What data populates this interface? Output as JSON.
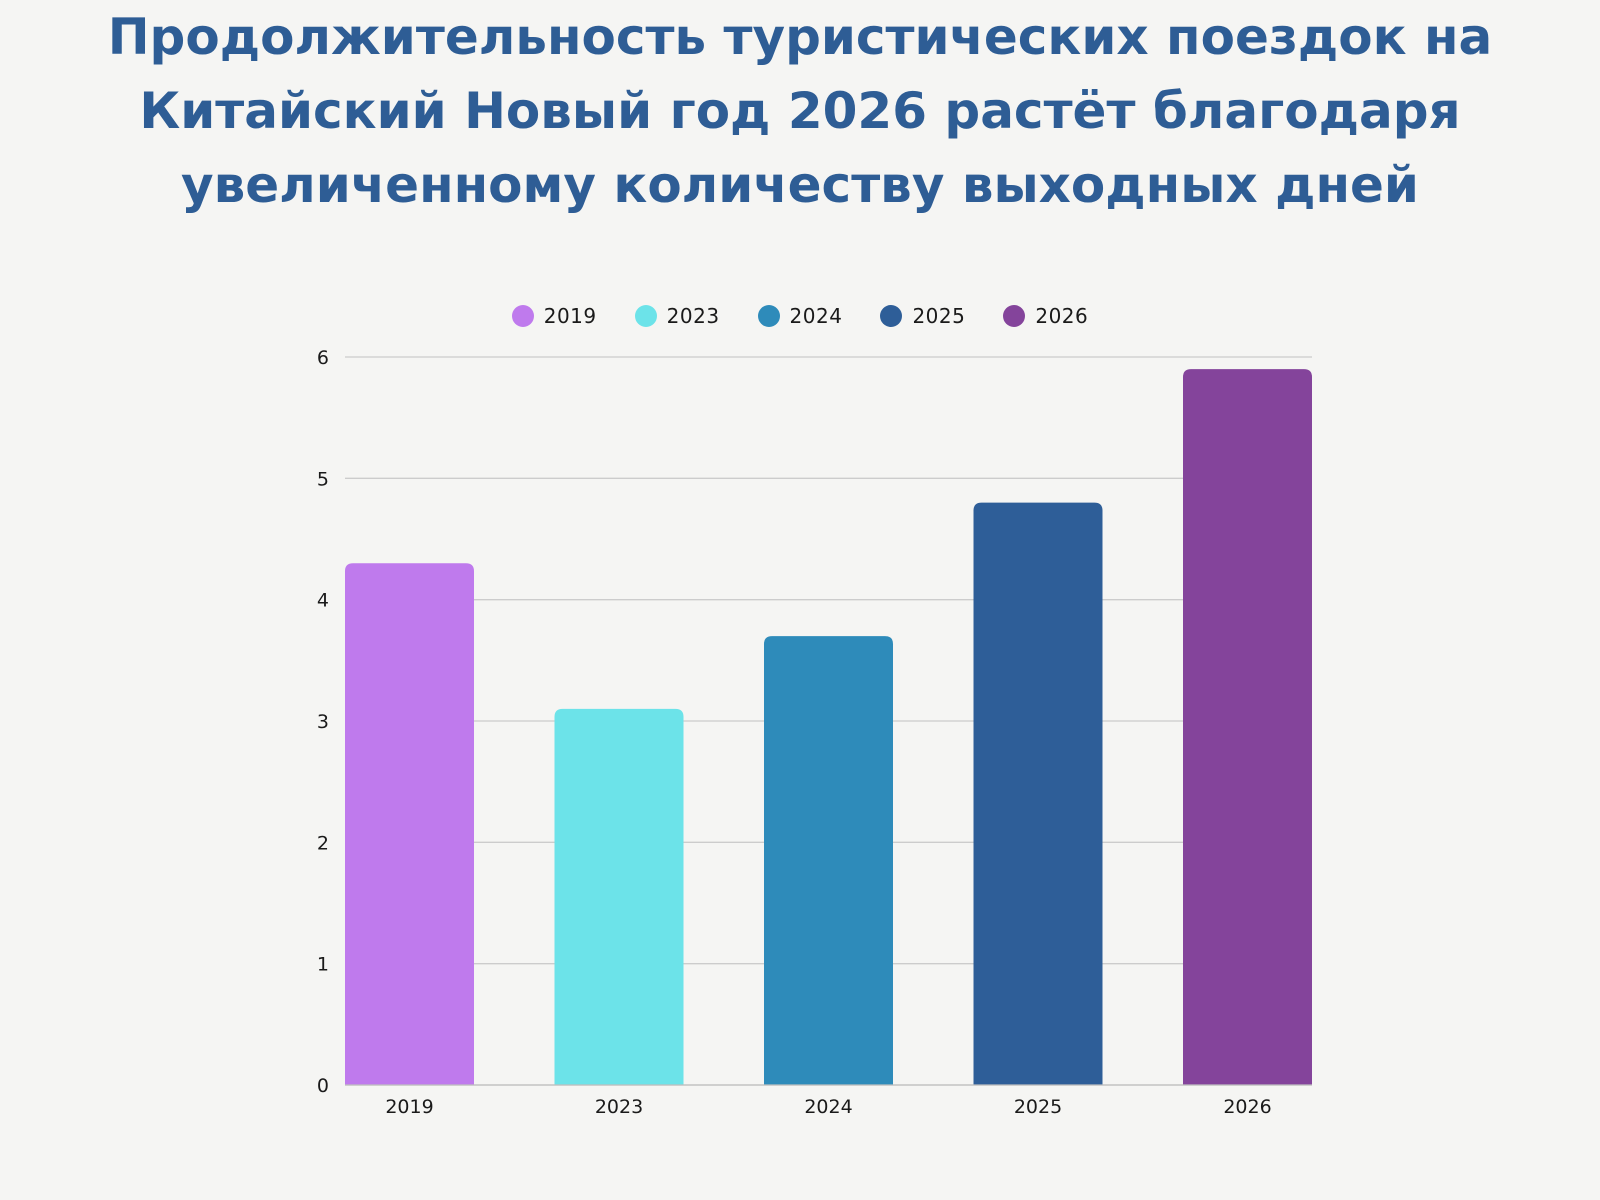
{
  "chart_data": {
    "type": "bar",
    "title": [
      "Продолжительность туристических поездок на",
      "Китайский Новый год 2026 растёт благодаря",
      "увеличенному количеству выходных дней"
    ],
    "xlabel": "",
    "ylabel": "",
    "categories": [
      "2019",
      "2023",
      "2024",
      "2025",
      "2026"
    ],
    "values": [
      4.3,
      3.1,
      3.7,
      4.8,
      5.9
    ],
    "colors": [
      "#bf7aed",
      "#6ce3e9",
      "#2e8bba",
      "#2e5e98",
      "#84449b"
    ],
    "ylim": [
      0,
      6
    ],
    "yticks": [
      "0",
      "1",
      "2",
      "3",
      "4",
      "5",
      "6"
    ],
    "grid": true,
    "legend": {
      "placement": "top-center",
      "entries": [
        "2019",
        "2023",
        "2024",
        "2025",
        "2026"
      ]
    }
  }
}
